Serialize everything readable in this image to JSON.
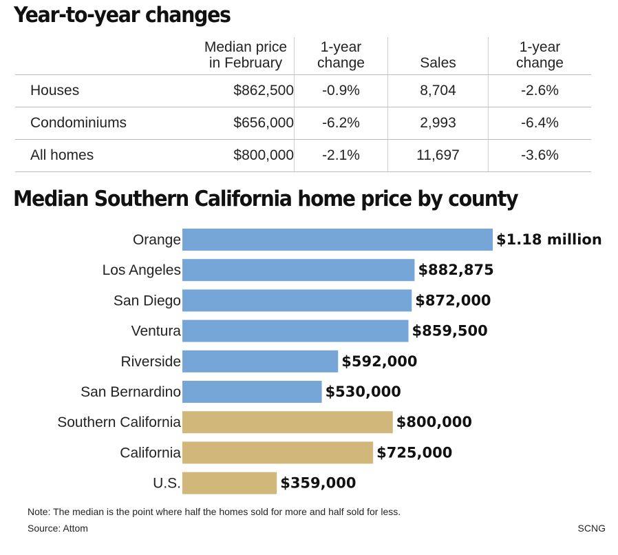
{
  "table": {
    "title": "Year-to-year changes",
    "headers": {
      "label": "",
      "price": "Median price in February",
      "price_change": "1-year change",
      "sales": "Sales",
      "sales_change": "1-year change"
    },
    "rows": [
      {
        "label": "Houses",
        "price": "$862,500",
        "price_change": "-0.9%",
        "sales": "8,704",
        "sales_change": "-2.6%"
      },
      {
        "label": "Condominiums",
        "price": "$656,000",
        "price_change": "-6.2%",
        "sales": "2,993",
        "sales_change": "-6.4%"
      },
      {
        "label": "All homes",
        "price": "$800,000",
        "price_change": "-2.1%",
        "sales": "11,697",
        "sales_change": "-3.6%"
      }
    ]
  },
  "chart_data": {
    "type": "bar",
    "orientation": "horizontal",
    "title": "Median Southern California home price by county",
    "xlabel": "",
    "ylabel": "",
    "categories": [
      "Orange",
      "Los Angeles",
      "San Diego",
      "Ventura",
      "Riverside",
      "San Bernardino",
      "Southern California",
      "California",
      "U.S."
    ],
    "values": [
      1180000,
      882875,
      872000,
      859500,
      592000,
      530000,
      800000,
      725000,
      359000
    ],
    "value_labels": [
      "$1.18 million",
      "$882,875",
      "$872,000",
      "$859,500",
      "$592,000",
      "$530,000",
      "$800,000",
      "$725,000",
      "$359,000"
    ],
    "groups": [
      "county",
      "county",
      "county",
      "county",
      "county",
      "county",
      "region",
      "region",
      "region"
    ],
    "colors": {
      "county": "#76a5d8",
      "region": "#d2b77a"
    },
    "xlim": [
      0,
      1180000
    ],
    "grid": false,
    "legend": "none"
  },
  "footer": {
    "note": "Note: The median is the point where half the homes sold for more and half sold for less.",
    "source": "Source: Attom",
    "credit": "SCNG"
  }
}
